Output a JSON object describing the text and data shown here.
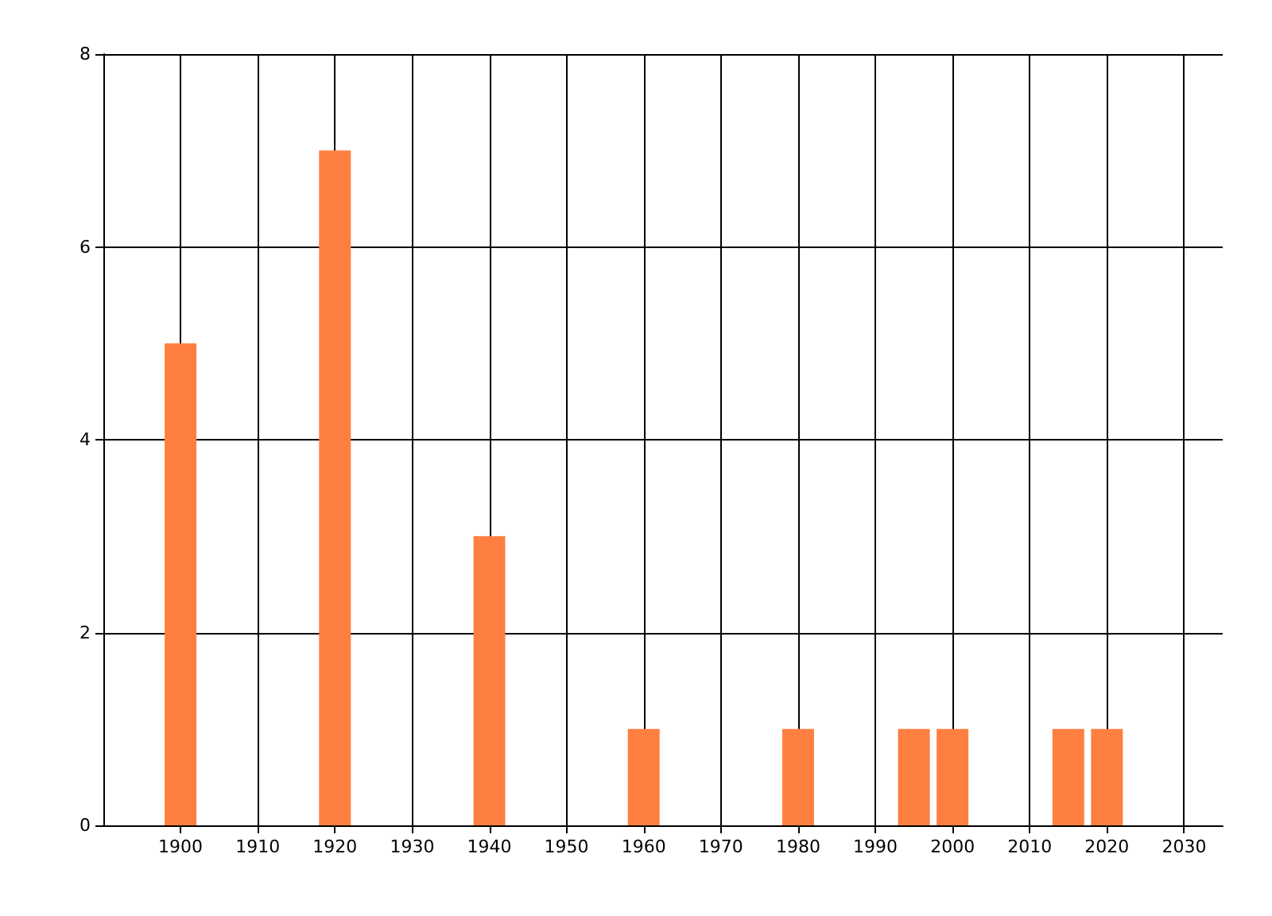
{
  "chart_data": {
    "type": "bar",
    "x": [
      1900,
      1920,
      1940,
      1960,
      1980,
      1995,
      2000,
      2015,
      2020
    ],
    "values": [
      5,
      7,
      3,
      1,
      1,
      1,
      1,
      1,
      1
    ],
    "color": "#ff7f40",
    "xlim": [
      1890,
      2035
    ],
    "xticks": [
      1900,
      1910,
      1920,
      1930,
      1940,
      1950,
      1960,
      1970,
      1980,
      1990,
      2000,
      2010,
      2020,
      2030
    ],
    "ylim": [
      0,
      8
    ],
    "yticks": [
      0,
      2,
      4,
      6,
      8
    ],
    "grid": true
  }
}
